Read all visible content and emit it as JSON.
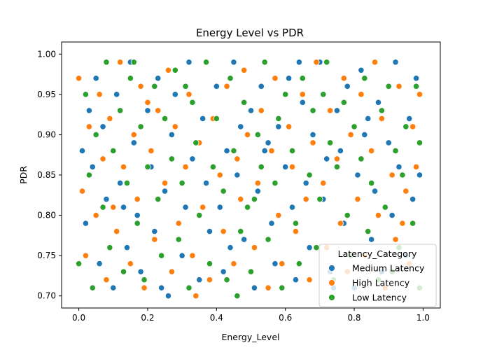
{
  "chart_data": {
    "type": "scatter",
    "title": "Energy Level vs PDR",
    "xlabel": "Energy_Level",
    "ylabel": "PDR",
    "xlim": [
      -0.05,
      1.05
    ],
    "ylim": [
      0.685,
      1.015
    ],
    "x_ticks": [
      "0.0",
      "0.2",
      "0.4",
      "0.6",
      "0.8",
      "1.0"
    ],
    "y_ticks": [
      "0.70",
      "0.75",
      "0.80",
      "0.85",
      "0.90",
      "0.95",
      "1.00"
    ],
    "grid": false,
    "legend": {
      "title": "Latency_Category",
      "placement": "bottom-right"
    },
    "series": [
      {
        "name": "Medium Latency",
        "color": "#1f77b4",
        "points": [
          [
            0.01,
            0.88
          ],
          [
            0.02,
            0.79
          ],
          [
            0.03,
            0.93
          ],
          [
            0.04,
            0.86
          ],
          [
            0.05,
            0.97
          ],
          [
            0.06,
            0.74
          ],
          [
            0.07,
            0.91
          ],
          [
            0.08,
            0.82
          ],
          [
            0.1,
            0.71
          ],
          [
            0.11,
            0.95
          ],
          [
            0.12,
            0.84
          ],
          [
            0.14,
            0.76
          ],
          [
            0.15,
            0.99
          ],
          [
            0.16,
            0.89
          ],
          [
            0.17,
            0.8
          ],
          [
            0.18,
            0.73
          ],
          [
            0.2,
            0.93
          ],
          [
            0.21,
            0.86
          ],
          [
            0.22,
            0.78
          ],
          [
            0.23,
            0.97
          ],
          [
            0.24,
            0.71
          ],
          [
            0.25,
            0.83
          ],
          [
            0.27,
            0.9
          ],
          [
            0.28,
            0.95
          ],
          [
            0.3,
            0.75
          ],
          [
            0.31,
            0.81
          ],
          [
            0.32,
            0.99
          ],
          [
            0.33,
            0.87
          ],
          [
            0.35,
            0.72
          ],
          [
            0.36,
            0.92
          ],
          [
            0.37,
            0.84
          ],
          [
            0.38,
            0.78
          ],
          [
            0.4,
            0.96
          ],
          [
            0.41,
            0.81
          ],
          [
            0.42,
            0.73
          ],
          [
            0.43,
            0.88
          ],
          [
            0.45,
            0.99
          ],
          [
            0.46,
            0.85
          ],
          [
            0.47,
            0.91
          ],
          [
            0.48,
            0.77
          ],
          [
            0.5,
            0.93
          ],
          [
            0.51,
            0.71
          ],
          [
            0.52,
            0.83
          ],
          [
            0.53,
            0.96
          ],
          [
            0.55,
            0.89
          ],
          [
            0.56,
            0.79
          ],
          [
            0.57,
            0.74
          ],
          [
            0.58,
            0.91
          ],
          [
            0.6,
            0.86
          ],
          [
            0.61,
            0.97
          ],
          [
            0.62,
            0.81
          ],
          [
            0.63,
            0.72
          ],
          [
            0.65,
            0.94
          ],
          [
            0.66,
            0.84
          ],
          [
            0.67,
            0.76
          ],
          [
            0.68,
            0.9
          ],
          [
            0.7,
            0.99
          ],
          [
            0.71,
            0.82
          ],
          [
            0.72,
            0.87
          ],
          [
            0.73,
            0.73
          ],
          [
            0.75,
            0.93
          ],
          [
            0.76,
            0.88
          ],
          [
            0.77,
            0.79
          ],
          [
            0.78,
            0.96
          ],
          [
            0.8,
            0.71
          ],
          [
            0.81,
            0.85
          ],
          [
            0.82,
            0.98
          ],
          [
            0.83,
            0.9
          ],
          [
            0.85,
            0.77
          ],
          [
            0.86,
            0.83
          ],
          [
            0.87,
            0.94
          ],
          [
            0.88,
            0.73
          ],
          [
            0.9,
            0.89
          ],
          [
            0.91,
            0.8
          ],
          [
            0.92,
            0.99
          ],
          [
            0.93,
            0.86
          ],
          [
            0.95,
            0.75
          ],
          [
            0.96,
            0.92
          ],
          [
            0.97,
            0.82
          ],
          [
            0.98,
            0.97
          ],
          [
            0.99,
            0.85
          ],
          [
            0.13,
            0.81
          ],
          [
            0.44,
            0.76
          ],
          [
            0.64,
            0.99
          ],
          [
            0.74,
            0.71
          ],
          [
            0.84,
            0.92
          ],
          [
            0.26,
            0.7
          ],
          [
            0.54,
            0.88
          ]
        ]
      },
      {
        "name": "High Latency",
        "color": "#ff7f0e",
        "points": [
          [
            0.0,
            0.97
          ],
          [
            0.01,
            0.83
          ],
          [
            0.02,
            0.75
          ],
          [
            0.03,
            0.91
          ],
          [
            0.05,
            0.8
          ],
          [
            0.06,
            0.95
          ],
          [
            0.07,
            0.87
          ],
          [
            0.08,
            0.72
          ],
          [
            0.09,
            0.92
          ],
          [
            0.11,
            0.78
          ],
          [
            0.12,
            0.99
          ],
          [
            0.13,
            0.86
          ],
          [
            0.15,
            0.74
          ],
          [
            0.16,
            0.9
          ],
          [
            0.17,
            0.82
          ],
          [
            0.18,
            0.96
          ],
          [
            0.19,
            0.71
          ],
          [
            0.21,
            0.88
          ],
          [
            0.22,
            0.77
          ],
          [
            0.23,
            0.93
          ],
          [
            0.25,
            0.84
          ],
          [
            0.26,
            0.98
          ],
          [
            0.27,
            0.73
          ],
          [
            0.28,
            0.91
          ],
          [
            0.29,
            0.79
          ],
          [
            0.31,
            0.86
          ],
          [
            0.32,
            0.95
          ],
          [
            0.33,
            0.75
          ],
          [
            0.35,
            0.89
          ],
          [
            0.36,
            0.81
          ],
          [
            0.37,
            0.99
          ],
          [
            0.38,
            0.72
          ],
          [
            0.39,
            0.92
          ],
          [
            0.41,
            0.85
          ],
          [
            0.42,
            0.78
          ],
          [
            0.43,
            0.96
          ],
          [
            0.45,
            0.74
          ],
          [
            0.46,
            0.87
          ],
          [
            0.47,
            0.82
          ],
          [
            0.48,
            0.98
          ],
          [
            0.49,
            0.9
          ],
          [
            0.51,
            0.76
          ],
          [
            0.52,
            0.84
          ],
          [
            0.53,
            0.93
          ],
          [
            0.55,
            0.71
          ],
          [
            0.56,
            0.88
          ],
          [
            0.57,
            0.97
          ],
          [
            0.58,
            0.8
          ],
          [
            0.59,
            0.74
          ],
          [
            0.61,
            0.91
          ],
          [
            0.62,
            0.86
          ],
          [
            0.63,
            0.78
          ],
          [
            0.65,
            0.95
          ],
          [
            0.66,
            0.82
          ],
          [
            0.67,
            0.72
          ],
          [
            0.68,
            0.89
          ],
          [
            0.69,
            0.99
          ],
          [
            0.71,
            0.84
          ],
          [
            0.72,
            0.76
          ],
          [
            0.73,
            0.93
          ],
          [
            0.75,
            0.87
          ],
          [
            0.76,
            0.79
          ],
          [
            0.77,
            0.97
          ],
          [
            0.78,
            0.73
          ],
          [
            0.79,
            0.9
          ],
          [
            0.81,
            0.82
          ],
          [
            0.82,
            0.95
          ],
          [
            0.83,
            0.75
          ],
          [
            0.85,
            0.88
          ],
          [
            0.86,
            0.99
          ],
          [
            0.87,
            0.8
          ],
          [
            0.88,
            0.92
          ],
          [
            0.89,
            0.71
          ],
          [
            0.91,
            0.85
          ],
          [
            0.92,
            0.77
          ],
          [
            0.93,
            0.96
          ],
          [
            0.95,
            0.83
          ],
          [
            0.96,
            0.74
          ],
          [
            0.97,
            0.91
          ],
          [
            0.98,
            0.86
          ],
          [
            0.99,
            0.95
          ],
          [
            0.1,
            0.81
          ],
          [
            0.34,
            0.7
          ],
          [
            0.54,
            0.99
          ],
          [
            0.74,
            0.72
          ],
          [
            0.94,
            0.79
          ],
          [
            0.2,
            0.94
          ]
        ]
      },
      {
        "name": "Low Latency",
        "color": "#2ca02c",
        "points": [
          [
            0.0,
            0.74
          ],
          [
            0.02,
            0.95
          ],
          [
            0.03,
            0.85
          ],
          [
            0.04,
            0.71
          ],
          [
            0.05,
            0.9
          ],
          [
            0.07,
            0.81
          ],
          [
            0.08,
            0.99
          ],
          [
            0.09,
            0.76
          ],
          [
            0.1,
            0.88
          ],
          [
            0.12,
            0.93
          ],
          [
            0.13,
            0.73
          ],
          [
            0.14,
            0.84
          ],
          [
            0.15,
            0.97
          ],
          [
            0.17,
            0.79
          ],
          [
            0.18,
            0.91
          ],
          [
            0.19,
            0.72
          ],
          [
            0.2,
            0.86
          ],
          [
            0.22,
            0.96
          ],
          [
            0.23,
            0.82
          ],
          [
            0.24,
            0.75
          ],
          [
            0.25,
            0.92
          ],
          [
            0.27,
            0.87
          ],
          [
            0.28,
            0.98
          ],
          [
            0.29,
            0.77
          ],
          [
            0.3,
            0.84
          ],
          [
            0.32,
            0.71
          ],
          [
            0.33,
            0.94
          ],
          [
            0.34,
            0.89
          ],
          [
            0.35,
            0.8
          ],
          [
            0.37,
            0.99
          ],
          [
            0.38,
            0.74
          ],
          [
            0.39,
            0.86
          ],
          [
            0.4,
            0.92
          ],
          [
            0.42,
            0.83
          ],
          [
            0.43,
            0.72
          ],
          [
            0.44,
            0.97
          ],
          [
            0.45,
            0.88
          ],
          [
            0.47,
            0.78
          ],
          [
            0.48,
            0.94
          ],
          [
            0.49,
            0.81
          ],
          [
            0.5,
            0.73
          ],
          [
            0.52,
            0.9
          ],
          [
            0.53,
            0.86
          ],
          [
            0.54,
            0.99
          ],
          [
            0.55,
            0.77
          ],
          [
            0.57,
            0.84
          ],
          [
            0.58,
            0.92
          ],
          [
            0.59,
            0.71
          ],
          [
            0.6,
            0.95
          ],
          [
            0.62,
            0.88
          ],
          [
            0.63,
            0.79
          ],
          [
            0.64,
            0.74
          ],
          [
            0.65,
            0.97
          ],
          [
            0.67,
            0.85
          ],
          [
            0.68,
            0.93
          ],
          [
            0.69,
            0.76
          ],
          [
            0.7,
            0.82
          ],
          [
            0.72,
            0.99
          ],
          [
            0.73,
            0.89
          ],
          [
            0.74,
            0.72
          ],
          [
            0.75,
            0.86
          ],
          [
            0.77,
            0.94
          ],
          [
            0.78,
            0.8
          ],
          [
            0.79,
            0.75
          ],
          [
            0.8,
            0.91
          ],
          [
            0.82,
            0.87
          ],
          [
            0.83,
            0.97
          ],
          [
            0.84,
            0.78
          ],
          [
            0.85,
            0.84
          ],
          [
            0.87,
            0.72
          ],
          [
            0.88,
            0.93
          ],
          [
            0.89,
            0.81
          ],
          [
            0.9,
            0.96
          ],
          [
            0.92,
            0.88
          ],
          [
            0.93,
            0.76
          ],
          [
            0.94,
            0.85
          ],
          [
            0.95,
            0.91
          ],
          [
            0.97,
            0.79
          ],
          [
            0.98,
            0.96
          ],
          [
            0.99,
            0.89
          ],
          [
            0.99,
            0.71
          ],
          [
            0.31,
            0.96
          ],
          [
            0.51,
            0.82
          ],
          [
            0.71,
            0.95
          ],
          [
            0.91,
            0.73
          ],
          [
            0.16,
            0.99
          ],
          [
            0.46,
            0.7
          ]
        ]
      }
    ]
  }
}
